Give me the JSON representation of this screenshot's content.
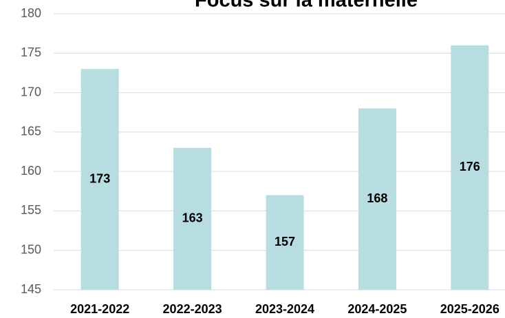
{
  "chart_data": {
    "type": "bar",
    "title": "Focus sur la maternelle",
    "categories": [
      "2021-2022",
      "2022-2023",
      "2023-2024",
      "2024-2025",
      "2025-2026"
    ],
    "values": [
      173,
      163,
      157,
      168,
      176
    ],
    "color": "#b7dde0",
    "ylim": [
      145,
      180
    ],
    "yticks": [
      145,
      150,
      155,
      160,
      165,
      170,
      175,
      180
    ],
    "grid": true
  }
}
